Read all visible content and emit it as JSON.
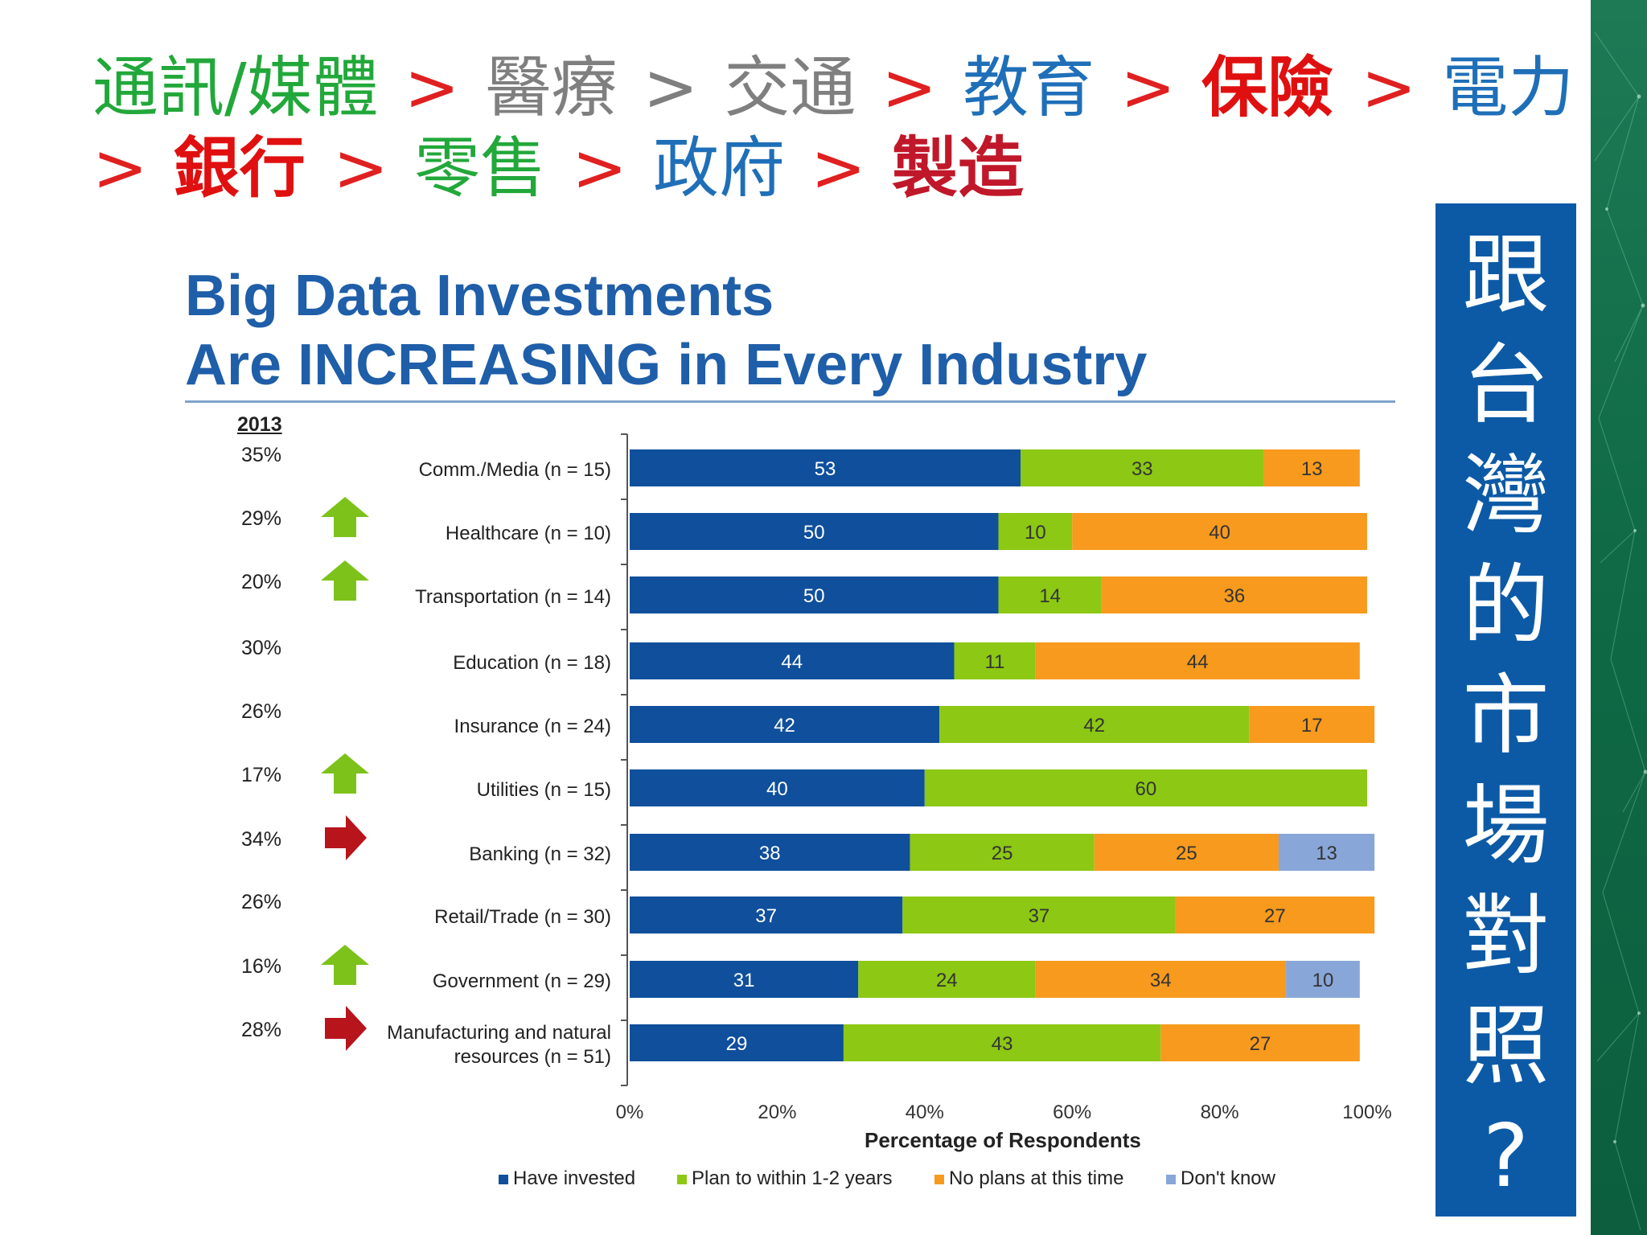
{
  "heading": {
    "line1": [
      {
        "text": "通訊/媒體",
        "color": "#22a83a",
        "bold": false
      },
      {
        "sep": ">",
        "color": "#e02020"
      },
      {
        "text": "醫療",
        "color": "#7f7f7f",
        "bold": false
      },
      {
        "sep": ">",
        "color": "#7f7f7f"
      },
      {
        "text": "交通",
        "color": "#7f7f7f",
        "bold": false
      },
      {
        "sep": ">",
        "color": "#e02020"
      },
      {
        "text": "教育",
        "color": "#1f6fb8",
        "bold": false
      },
      {
        "sep": ">",
        "color": "#e02020"
      },
      {
        "text": "保險",
        "color": "#e01010",
        "bold": true
      },
      {
        "sep": ">",
        "color": "#e02020"
      },
      {
        "text": "電力",
        "color": "#1f6fb8",
        "bold": false
      }
    ],
    "line2": [
      {
        "sep": ">",
        "color": "#e02020"
      },
      {
        "text": "銀行",
        "color": "#e01010",
        "bold": true
      },
      {
        "sep": ">",
        "color": "#e02020"
      },
      {
        "text": "零售",
        "color": "#22a83a",
        "bold": false
      },
      {
        "sep": ">",
        "color": "#e02020"
      },
      {
        "text": "政府",
        "color": "#1f6fb8",
        "bold": false
      },
      {
        "sep": ">",
        "color": "#e02020"
      },
      {
        "text": "製造",
        "color": "#c0182a",
        "bold": true
      }
    ]
  },
  "side_box": {
    "chars": [
      "跟",
      "台",
      "灣",
      "的",
      "市",
      "場",
      "對",
      "照",
      "?"
    ],
    "color": "#0c5aa6"
  },
  "chart_data": {
    "type": "bar",
    "orientation": "horizontal",
    "stacked": true,
    "title": "Big Data Investments",
    "subtitle": "Are INCREASING in Every Industry",
    "xlabel": "Percentage of Respondents",
    "ylabel": "",
    "xlim": [
      0,
      100
    ],
    "x_ticks": [
      "0%",
      "20%",
      "40%",
      "60%",
      "80%",
      "100%"
    ],
    "year_column_header": "2013",
    "categories": [
      "Comm./Media (n = 15)",
      "Healthcare (n = 10)",
      "Transportation (n = 14)",
      "Education (n = 18)",
      "Insurance (n = 24)",
      "Utilities (n = 15)",
      "Banking (n = 32)",
      "Retail/Trade (n = 30)",
      "Government (n = 29)",
      "Manufacturing and natural resources (n = 51)"
    ],
    "category_lines": [
      [
        "Comm./Media (n = 15)"
      ],
      [
        "Healthcare (n = 10)"
      ],
      [
        "Transportation (n = 14)"
      ],
      [
        "Education (n = 18)"
      ],
      [
        "Insurance (n = 24)"
      ],
      [
        "Utilities (n = 15)"
      ],
      [
        "Banking (n = 32)"
      ],
      [
        "Retail/Trade (n = 30)"
      ],
      [
        "Government (n = 29)"
      ],
      [
        "Manufacturing and natural",
        "resources (n = 51)"
      ]
    ],
    "year_2013": [
      "35%",
      "29%",
      "20%",
      "30%",
      "26%",
      "17%",
      "34%",
      "26%",
      "16%",
      "28%"
    ],
    "trend_arrows": [
      null,
      "up",
      "up",
      null,
      null,
      "up",
      "right",
      null,
      "up",
      "right"
    ],
    "series": [
      {
        "name": "Have invested",
        "color": "#0f4f9c",
        "values": [
          53,
          50,
          50,
          44,
          42,
          40,
          38,
          37,
          31,
          29
        ]
      },
      {
        "name": "Plan to within 1-2 years",
        "color": "#8cc814",
        "values": [
          33,
          10,
          14,
          11,
          42,
          60,
          25,
          37,
          24,
          43
        ]
      },
      {
        "name": "No plans at this time",
        "color": "#f79a1e",
        "values": [
          13,
          40,
          36,
          44,
          17,
          null,
          25,
          27,
          34,
          27
        ]
      },
      {
        "name": "Don't know",
        "color": "#88a6d8",
        "values": [
          null,
          null,
          null,
          null,
          null,
          null,
          13,
          null,
          10,
          null
        ]
      }
    ],
    "colors": {
      "up_arrow": "#7dc21a",
      "right_arrow": "#b8141c"
    },
    "grid": false,
    "legend_position": "bottom"
  }
}
